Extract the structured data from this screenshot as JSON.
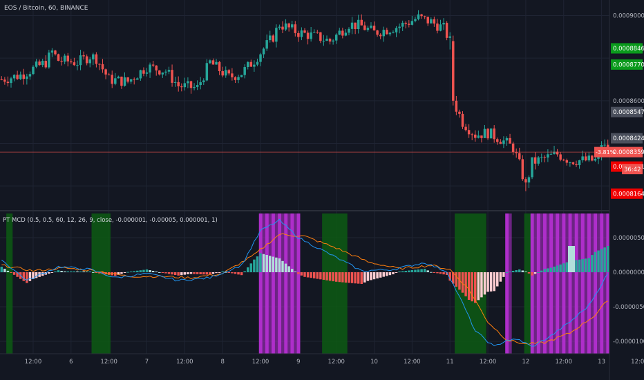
{
  "header": {
    "symbol_line": "EOS / Bitcoin, 60, BINANCE",
    "indicator_line": "PT MCD (0.5, 0.5, 60, 12, 26, 9, close, -0.000001, -0.00005, 0.000001, 1)"
  },
  "colors": {
    "background": "#131722",
    "up": "#26a69a",
    "down": "#ef5350",
    "grid": "#1f2433",
    "macd_line": "#2196f3",
    "signal_line": "#ff7f0e",
    "magenta_band": "#b62fd4",
    "green_band": "#0d5b13",
    "last_price": "#ef5350"
  },
  "price_axis": {
    "ticks": [
      "0.0009000",
      "0.0008600"
    ],
    "tags": [
      {
        "text": "0.0008846",
        "bg": "#0a9a1c",
        "fg": "#ffffff",
        "price": 0.0008846
      },
      {
        "text": "0.0008770",
        "bg": "#0a9a1c",
        "fg": "#ffffff",
        "price": 0.000877
      },
      {
        "text": "0.0008547",
        "bg": "#4a4f5c",
        "fg": "#ffffff",
        "price": 0.0008547
      },
      {
        "text": "0.0008424",
        "bg": "#4a4f5c",
        "fg": "#ffffff",
        "price": 0.0008424
      },
      {
        "text": "0.0008359",
        "bg": "#ef5350",
        "fg": "#ffffff",
        "price": 0.0008359
      },
      {
        "text": "0.0008291",
        "bg": "#ef0000",
        "fg": "#ffffff",
        "price": 0.0008291
      },
      {
        "text": "0.0008164",
        "bg": "#ef0000",
        "fg": "#ffffff",
        "price": 0.0008164
      }
    ],
    "change_tag": "-3.81%",
    "countdown": "36:42"
  },
  "indicator_axis": {
    "ticks": [
      {
        "text": "0.00000500",
        "v": 5e-06
      },
      {
        "text": "0.00000000",
        "v": 0
      },
      {
        "text": "-0.00000500",
        "v": -5e-06
      },
      {
        "text": "-0.00001000",
        "v": -1e-05
      }
    ]
  },
  "time_axis": {
    "labels": [
      {
        "text": "12:00",
        "bar": 10
      },
      {
        "text": "6",
        "bar": 22
      },
      {
        "text": "12:00",
        "bar": 34
      },
      {
        "text": "7",
        "bar": 46
      },
      {
        "text": "12:00",
        "bar": 58
      },
      {
        "text": "8",
        "bar": 70
      },
      {
        "text": "12:00",
        "bar": 82
      },
      {
        "text": "9",
        "bar": 94
      },
      {
        "text": "12:00",
        "bar": 106
      },
      {
        "text": "10",
        "bar": 118
      },
      {
        "text": "12:00",
        "bar": 130
      },
      {
        "text": "11",
        "bar": 142
      },
      {
        "text": "12:00",
        "bar": 154
      },
      {
        "text": "12",
        "bar": 166
      },
      {
        "text": "12:00",
        "bar": 178
      },
      {
        "text": "13",
        "bar": 190
      },
      {
        "text": "12:00",
        "bar": 202
      }
    ]
  },
  "chart_data": {
    "type": "candlestick",
    "bars": 193,
    "price_range": [
      0.00081,
      0.000906
    ],
    "price_keypoints": [
      [
        0,
        0.00087
      ],
      [
        6,
        0.000872
      ],
      [
        14,
        0.000878
      ],
      [
        16,
        0.000883
      ],
      [
        18,
        0.000879
      ],
      [
        24,
        0.000878
      ],
      [
        28,
        0.000881
      ],
      [
        30,
        0.00088
      ],
      [
        34,
        0.00087
      ],
      [
        40,
        0.000869
      ],
      [
        46,
        0.000876
      ],
      [
        52,
        0.000874
      ],
      [
        56,
        0.000867
      ],
      [
        62,
        0.000866
      ],
      [
        66,
        0.000878
      ],
      [
        72,
        0.000871
      ],
      [
        76,
        0.000873
      ],
      [
        80,
        0.000879
      ],
      [
        86,
        0.00089
      ],
      [
        88,
        0.000896
      ],
      [
        94,
        0.000892
      ],
      [
        100,
        0.00089
      ],
      [
        104,
        0.000888
      ],
      [
        110,
        0.000896
      ],
      [
        114,
        0.000895
      ],
      [
        118,
        0.000892
      ],
      [
        126,
        0.000895
      ],
      [
        132,
        0.000899
      ],
      [
        136,
        0.000897
      ],
      [
        140,
        0.000894
      ],
      [
        142,
        0.000888
      ],
      [
        143,
        0.00086
      ],
      [
        146,
        0.00085
      ],
      [
        150,
        0.000844
      ],
      [
        154,
        0.000845
      ],
      [
        158,
        0.000842
      ],
      [
        162,
        0.000838
      ],
      [
        164,
        0.00083
      ],
      [
        166,
        0.00082
      ],
      [
        168,
        0.000831
      ],
      [
        172,
        0.000833
      ],
      [
        176,
        0.000835
      ],
      [
        180,
        0.000832
      ],
      [
        186,
        0.000832
      ],
      [
        189,
        0.000832
      ],
      [
        190,
        0.00084
      ],
      [
        192,
        0.0008359
      ]
    ],
    "indicator_range": [
      -1.18e-05,
      8.5e-06
    ],
    "macd_keypoints": [
      [
        0,
        1.8e-06
      ],
      [
        8,
        -1.2e-06
      ],
      [
        18,
        8e-07
      ],
      [
        28,
        4e-07
      ],
      [
        36,
        -8e-07
      ],
      [
        46,
        -2e-07
      ],
      [
        56,
        -1.2e-06
      ],
      [
        66,
        -8e-07
      ],
      [
        76,
        1e-06
      ],
      [
        82,
        6e-06
      ],
      [
        88,
        7.5e-06
      ],
      [
        94,
        5e-06
      ],
      [
        104,
        2.6e-06
      ],
      [
        114,
        2e-07
      ],
      [
        124,
        4e-07
      ],
      [
        134,
        1.4e-06
      ],
      [
        141,
        1e-07
      ],
      [
        146,
        -4.5e-06
      ],
      [
        150,
        -8.5e-06
      ],
      [
        156,
        -1.08e-05
      ],
      [
        160,
        -9.8e-06
      ],
      [
        164,
        -9.8e-06
      ],
      [
        168,
        -1.08e-05
      ],
      [
        174,
        -9.2e-06
      ],
      [
        180,
        -7.2e-06
      ],
      [
        186,
        -4.8e-06
      ],
      [
        192,
        -2e-07
      ]
    ],
    "signal_keypoints": [
      [
        0,
        1e-06
      ],
      [
        10,
        2e-07
      ],
      [
        20,
        6e-07
      ],
      [
        30,
        2e-07
      ],
      [
        40,
        -6e-07
      ],
      [
        50,
        -6e-07
      ],
      [
        60,
        -8e-07
      ],
      [
        70,
        -2e-07
      ],
      [
        80,
        2.5e-06
      ],
      [
        88,
        5.5e-06
      ],
      [
        96,
        5.2e-06
      ],
      [
        106,
        3.5e-06
      ],
      [
        116,
        1.5e-06
      ],
      [
        126,
        5e-07
      ],
      [
        136,
        1e-06
      ],
      [
        142,
        4e-07
      ],
      [
        148,
        -2.5e-06
      ],
      [
        154,
        -7.2e-06
      ],
      [
        160,
        -9.8e-06
      ],
      [
        166,
        -1.04e-05
      ],
      [
        172,
        -1.02e-05
      ],
      [
        180,
        -8.8e-06
      ],
      [
        188,
        -6.2e-06
      ],
      [
        192,
        -4e-06
      ]
    ],
    "magenta_bands": [
      [
        82,
        94
      ],
      [
        160,
        161
      ],
      [
        168,
        192
      ]
    ],
    "green_bands": [
      [
        2,
        3
      ],
      [
        29,
        34
      ],
      [
        102,
        109
      ],
      [
        144,
        153
      ],
      [
        166,
        168
      ]
    ],
    "seed": 7
  }
}
